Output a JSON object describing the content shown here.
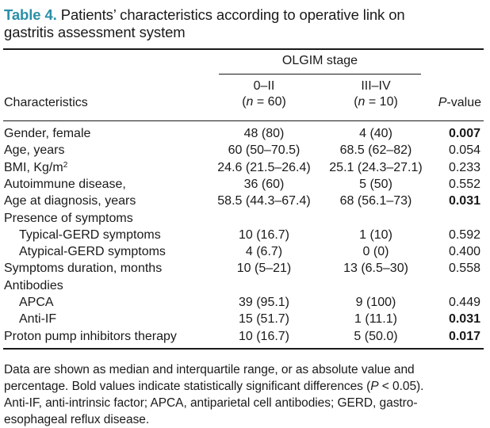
{
  "caption": {
    "label": "Table 4.",
    "line1": " Patients’ characteristics according to operative link on",
    "line2": "gastritis assessment system"
  },
  "header": {
    "group": "OLGIM stage",
    "col0": "Characteristics",
    "col1_title": "0–II",
    "col1_n_prefix": "(",
    "col1_n_var": "n",
    "col1_n_suffix": " = 60)",
    "col2_title": "III–IV",
    "col2_n_prefix": "(",
    "col2_n_var": "n",
    "col2_n_suffix": " = 10)",
    "col3_var": "P",
    "col3_suffix": "-value"
  },
  "rows": [
    {
      "label": "Gender, female",
      "a": "48 (80)",
      "b": "4 (40)",
      "p": "0.007",
      "bold": true,
      "indent": false
    },
    {
      "label": "Age, years",
      "a": "60 (50–70.5)",
      "b": "68.5 (62–82)",
      "p": "0.054",
      "bold": false,
      "indent": false
    },
    {
      "label": "BMI, Kg/m",
      "sup": "2",
      "a": "24.6 (21.5–26.4)",
      "b": "25.1 (24.3–27.1)",
      "p": "0.233",
      "bold": false,
      "indent": false
    },
    {
      "label": "Autoimmune disease,",
      "a": "36 (60)",
      "b": "5 (50)",
      "p": "0.552",
      "bold": false,
      "indent": false
    },
    {
      "label": "Age at diagnosis, years",
      "a": "58.5 (44.3–67.4)",
      "b": "68 (56.1–73)",
      "p": "0.031",
      "bold": true,
      "indent": false
    },
    {
      "label": "Presence of symptoms",
      "a": "",
      "b": "",
      "p": "",
      "bold": false,
      "indent": false
    },
    {
      "label": "Typical-GERD symptoms",
      "a": "10 (16.7)",
      "b": "1 (10)",
      "p": "0.592",
      "bold": false,
      "indent": true
    },
    {
      "label": "Atypical-GERD symptoms",
      "a": "4 (6.7)",
      "b": "0 (0)",
      "p": "0.400",
      "bold": false,
      "indent": true
    },
    {
      "label": "Symptoms duration, months",
      "a": "10 (5–21)",
      "b": "13 (6.5–30)",
      "p": "0.558",
      "bold": false,
      "indent": false
    },
    {
      "label": "Antibodies",
      "a": "",
      "b": "",
      "p": "",
      "bold": false,
      "indent": false
    },
    {
      "label": "APCA",
      "a": "39 (95.1)",
      "b": "9 (100)",
      "p": "0.449",
      "bold": false,
      "indent": true
    },
    {
      "label": "Anti-IF",
      "a": "15 (51.7)",
      "b": "1 (11.1)",
      "p": "0.031",
      "bold": true,
      "indent": true
    },
    {
      "label": "Proton pump inhibitors therapy",
      "a": "10 (16.7)",
      "b": "5 (50.0)",
      "p": "0.017",
      "bold": true,
      "indent": false
    }
  ],
  "footnote": {
    "line1": "Data are shown as median and interquartile range, or as absolute value and",
    "line2a": "percentage. Bold values indicate statistically significant differences (",
    "line2_var": "P",
    "line2b": " < 0.05).",
    "line3": "Anti-IF, anti-intrinsic factor; APCA, antiparietal cell antibodies; GERD, gastro-",
    "line4": "esophageal reflux disease."
  }
}
